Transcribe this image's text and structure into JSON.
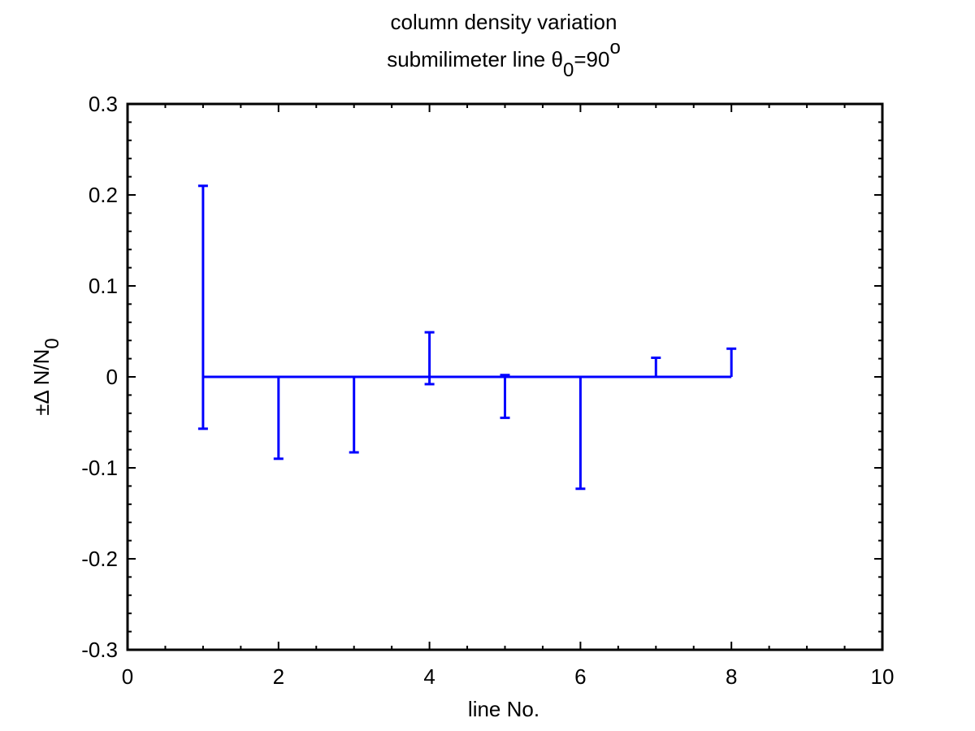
{
  "chart_data": {
    "type": "errorbar",
    "title_line1": "column density variation",
    "title_line2": {
      "prefix": "submilimeter line ",
      "symbol": "θ",
      "subscript": "0",
      "equals": "=90",
      "superscript": "o"
    },
    "xlabel": "line No.",
    "ylabel": {
      "main": "±Δ N/N",
      "subscript": "0"
    },
    "xlim": [
      0,
      10
    ],
    "ylim": [
      -0.3,
      0.3
    ],
    "xticks": [
      0,
      2,
      4,
      6,
      8,
      10
    ],
    "xtick_labels": [
      "0",
      "2",
      "4",
      "6",
      "8",
      "10"
    ],
    "yticks": [
      -0.3,
      -0.2,
      -0.1,
      0,
      0.1,
      0.2,
      0.3
    ],
    "ytick_labels": [
      "-0.3",
      "-0.2",
      "-0.1",
      "0",
      "0.1",
      "0.2",
      "0.3"
    ],
    "grid": false,
    "minor_ticks": true,
    "series": [
      {
        "color": "#0000ff",
        "x": [
          1,
          2,
          3,
          4,
          5,
          6,
          7,
          8
        ],
        "y": [
          0,
          0,
          0,
          0,
          0,
          0,
          0,
          0
        ],
        "err_upper": [
          0.21,
          0.0,
          0.0,
          0.049,
          0.002,
          0.0,
          0.021,
          0.031
        ],
        "err_lower": [
          0.057,
          0.09,
          0.083,
          0.008,
          0.045,
          0.123,
          0.0,
          0.0
        ]
      }
    ]
  }
}
